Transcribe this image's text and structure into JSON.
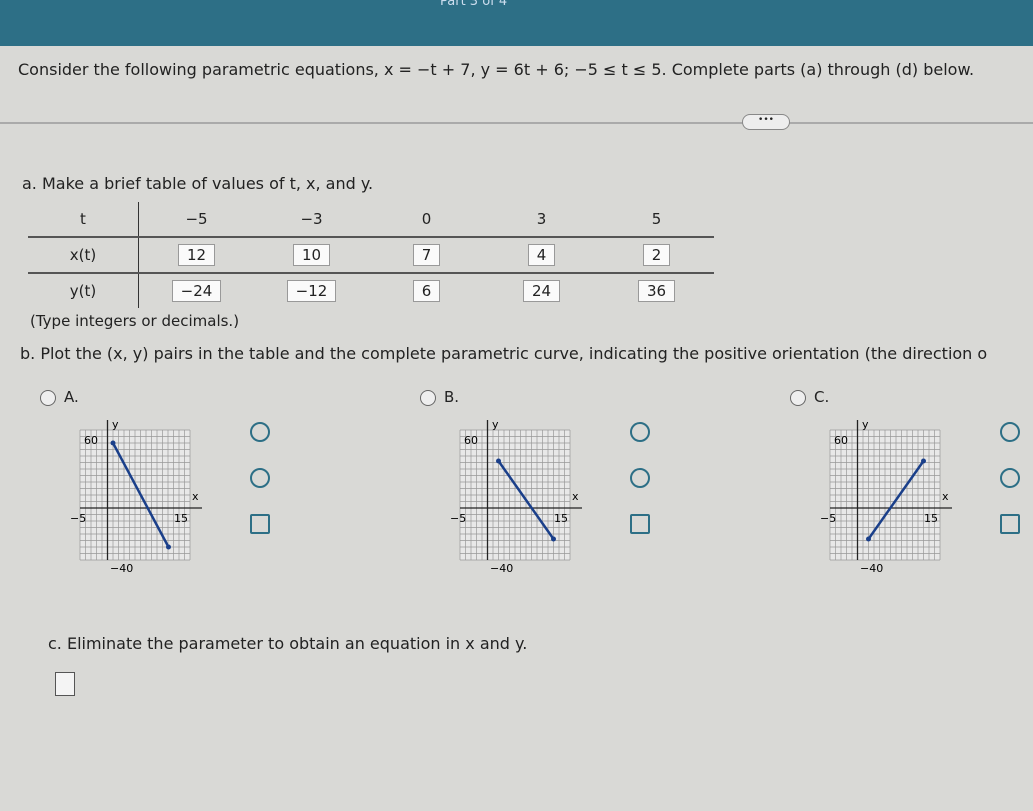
{
  "header": {
    "part": "Part 3 of 4"
  },
  "question": {
    "text": "Consider the following parametric equations, x = −t + 7, y = 6t + 6; −5 ≤ t ≤ 5. Complete parts (a) through (d) below."
  },
  "more_button": "•••",
  "part_a": {
    "prompt": "a. Make a brief table of values of t, x, and y.",
    "table": {
      "rows": [
        [
          "t",
          "−5",
          "−3",
          "0",
          "3",
          "5"
        ],
        [
          "x(t)",
          "12",
          "10",
          "7",
          "4",
          "2"
        ],
        [
          "y(t)",
          "−24",
          "−12",
          "6",
          "24",
          "36"
        ]
      ]
    },
    "hint": "(Type integers or decimals.)"
  },
  "part_b": {
    "prompt": "b. Plot the (x, y) pairs in the table and the complete parametric curve, indicating the positive orientation (the direction o",
    "options": [
      {
        "label": "A.",
        "y_name": "y",
        "x_name": "x",
        "y_max": "60",
        "x_min": "−5",
        "x_max": "15",
        "y_min": "−40"
      },
      {
        "label": "B.",
        "y_name": "y",
        "x_name": "x",
        "y_max": "60",
        "x_min": "−5",
        "x_max": "15",
        "y_min": "−40"
      },
      {
        "label": "C.",
        "y_name": "y",
        "x_name": "x",
        "y_max": "60",
        "x_min": "−5",
        "x_max": "15",
        "y_min": "−40"
      }
    ]
  },
  "part_c": {
    "prompt": "c. Eliminate the parameter to obtain an equation in x and y."
  }
}
